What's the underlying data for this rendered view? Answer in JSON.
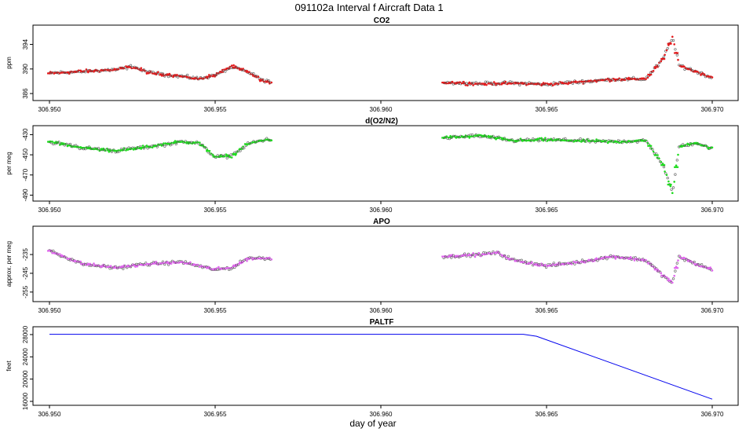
{
  "title": "091102a   Interval f Aircraft Data 1",
  "xlabel": "day of year",
  "chart_data": [
    {
      "type": "scatter",
      "title": "CO2",
      "ylabel": "ppm",
      "xlim": [
        306.95,
        306.97
      ],
      "ylim": [
        385.5,
        396.5
      ],
      "xticks": [
        "306.950",
        "306.955",
        "306.960",
        "306.965",
        "306.970"
      ],
      "yticks": [
        386,
        390,
        394
      ],
      "series": [
        {
          "color": "#e41a1c",
          "x": [
            306.95,
            306.951,
            306.952,
            306.9525,
            306.953,
            306.954,
            306.9545,
            306.955,
            306.9555,
            306.956,
            306.9565,
            306.962,
            306.963,
            306.964,
            306.965,
            306.966,
            306.967,
            306.968,
            306.9685,
            306.9688,
            306.969,
            306.9695,
            306.97
          ],
          "y": [
            389.3,
            389.6,
            389.9,
            390.4,
            389.4,
            388.8,
            388.4,
            389.0,
            390.4,
            389.5,
            387.9,
            387.8,
            387.6,
            387.7,
            387.5,
            387.9,
            388.3,
            388.4,
            391.5,
            395.2,
            390.6,
            389.6,
            388.6
          ]
        }
      ]
    },
    {
      "type": "scatter",
      "title": "d(O2/N2)",
      "ylabel": "per meg",
      "xlim": [
        306.95,
        306.97
      ],
      "ylim": [
        -492,
        -425
      ],
      "xticks": [
        "306.950",
        "306.955",
        "306.960",
        "306.965",
        "306.970"
      ],
      "yticks": [
        -430,
        -450,
        -470,
        -490
      ],
      "series": [
        {
          "color": "#1fdc1f",
          "x": [
            306.95,
            306.951,
            306.952,
            306.953,
            306.954,
            306.9545,
            306.955,
            306.9555,
            306.956,
            306.9565,
            306.962,
            306.963,
            306.964,
            306.965,
            306.966,
            306.967,
            306.968,
            306.9685,
            306.9688,
            306.969,
            306.9695,
            306.97
          ],
          "y": [
            -437,
            -443,
            -446,
            -442,
            -437,
            -438,
            -452,
            -451,
            -439,
            -435,
            -433,
            -431,
            -436,
            -435,
            -436,
            -437,
            -436,
            -459,
            -488,
            -442,
            -438,
            -444
          ]
        }
      ]
    },
    {
      "type": "scatter",
      "title": "APO",
      "ylabel": "approx. per meg",
      "xlim": [
        306.95,
        306.97
      ],
      "ylim": [
        -258,
        -222
      ],
      "xticks": [
        "306.950",
        "306.955",
        "306.960",
        "306.965",
        "306.970"
      ],
      "yticks": [
        -235,
        -245,
        -255
      ],
      "series": [
        {
          "color": "#e066ee",
          "x": [
            306.95,
            306.951,
            306.952,
            306.953,
            306.954,
            306.955,
            306.9555,
            306.956,
            306.9565,
            306.962,
            306.963,
            306.9635,
            306.964,
            306.965,
            306.966,
            306.967,
            306.968,
            306.9685,
            306.9688,
            306.969,
            306.9695,
            306.97
          ],
          "y": [
            -233,
            -240,
            -242,
            -240,
            -239,
            -243,
            -242,
            -237,
            -237,
            -236,
            -235,
            -234,
            -238,
            -241,
            -239,
            -236,
            -238,
            -246,
            -250,
            -236,
            -240,
            -243
          ]
        }
      ]
    },
    {
      "type": "line",
      "title": "PALTF",
      "ylabel": "feet",
      "xlim": [
        306.95,
        306.97
      ],
      "ylim": [
        16000,
        28700
      ],
      "xticks": [
        "306.950",
        "306.955",
        "306.960",
        "306.965",
        "306.970"
      ],
      "yticks": [
        16000,
        20000,
        24000,
        28000
      ],
      "series": [
        {
          "color": "#0000ee",
          "x": [
            306.95,
            306.9643,
            306.9647,
            306.97
          ],
          "y": [
            28050,
            28050,
            27700,
            16400
          ]
        }
      ]
    }
  ]
}
